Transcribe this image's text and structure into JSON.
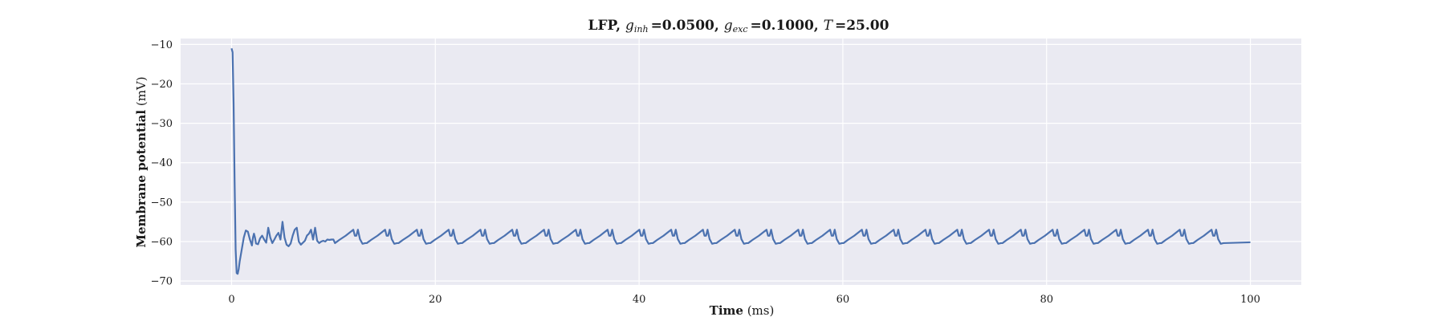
{
  "chart_data": {
    "type": "line",
    "title": {
      "prefix": "LFP, ",
      "g_inh_symbol": "g",
      "g_inh_sub": "inh",
      "g_inh_value": "=0.0500",
      "sep1": ", ",
      "g_exc_symbol": "g",
      "g_exc_sub": "exc",
      "g_exc_value": "=0.1000",
      "sep2": ", ",
      "T_symbol": "T",
      "T_value": "=25.00"
    },
    "xlabel": {
      "bold": "Time",
      "unit": " (ms)"
    },
    "ylabel": {
      "bold": "Membrane potential",
      "unit": " (mV)"
    },
    "xlim": [
      -5,
      105
    ],
    "ylim": [
      -71,
      -8.5
    ],
    "x_ticks": [
      0,
      20,
      40,
      60,
      80,
      100
    ],
    "x_tick_labels": [
      "0",
      "20",
      "40",
      "60",
      "80",
      "100"
    ],
    "y_ticks": [
      -10,
      -20,
      -30,
      -40,
      -50,
      -60,
      -70
    ],
    "y_tick_labels": [
      "−10",
      "−20",
      "−30",
      "−40",
      "−50",
      "−60",
      "−70"
    ],
    "grid": true,
    "background": "#eaeaf2",
    "grid_color": "#ffffff",
    "series": [
      {
        "color": "#4c72b0",
        "x": [
          0,
          0.1,
          0.2,
          0.3,
          0.4,
          0.5,
          0.6,
          0.7,
          0.8,
          1.0,
          1.2,
          1.4,
          1.6,
          1.8,
          2.0,
          2.1,
          2.2,
          2.3,
          2.4,
          2.6,
          2.8,
          3.0,
          3.2,
          3.4,
          3.6,
          3.8,
          4.0,
          4.2,
          4.4,
          4.6,
          4.8,
          5.0,
          5.2,
          5.4,
          5.6,
          5.8,
          6.0,
          6.2,
          6.4,
          6.6,
          6.8,
          7.0,
          7.2,
          7.4,
          7.6,
          7.8,
          8.0,
          8.2,
          8.4,
          8.6,
          8.8,
          9.0,
          9.2,
          9.4,
          9.6,
          9.8,
          10.0
        ],
        "y": [
          -11,
          -12,
          -25,
          -45,
          -62,
          -68,
          -68.2,
          -67,
          -65,
          -62,
          -59,
          -57.2,
          -57.5,
          -59.5,
          -61,
          -59,
          -58,
          -59,
          -60.5,
          -60.7,
          -59.2,
          -58.5,
          -59.5,
          -60.3,
          -56.5,
          -59,
          -60.4,
          -59.5,
          -58.5,
          -57.8,
          -59.5,
          -55,
          -59,
          -60.8,
          -61.2,
          -60.5,
          -58.5,
          -57,
          -56.5,
          -60,
          -60.8,
          -60.3,
          -59.8,
          -58.5,
          -58,
          -57,
          -59.5,
          -56.5,
          -59.8,
          -60.4,
          -60,
          -59.8,
          -60,
          -59.5,
          -59.6,
          -59.5,
          -59.5
        ]
      }
    ],
    "periodic_tail": {
      "start_ms": 10.0,
      "end_ms": 100.0,
      "period_ms": 3.12,
      "baseline_mV": -60.4,
      "peak_mV": -57.0,
      "note": "repetitive spike pattern"
    }
  }
}
